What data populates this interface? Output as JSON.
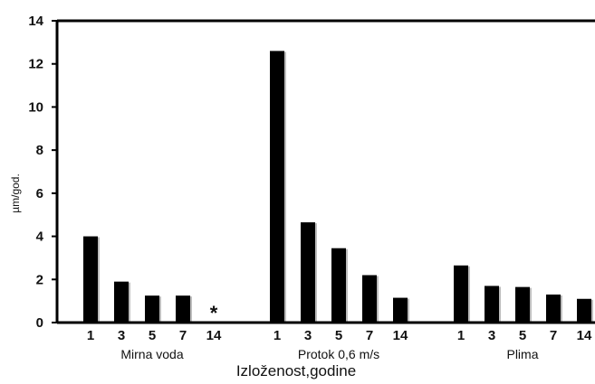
{
  "chart_data": {
    "type": "bar",
    "title": "",
    "xlabel": "Izloženost,godine",
    "ylabel": "µm/god.",
    "ylim": [
      0,
      14
    ],
    "yticks": [
      0,
      2,
      4,
      6,
      8,
      10,
      12,
      14
    ],
    "ytick_labels": [
      "0",
      "2",
      "4",
      "6",
      "8",
      "10",
      "12",
      "14"
    ],
    "grid": false,
    "legend": "none",
    "bar_color": "#000000",
    "bar_shadow_color": "#bdbdbd",
    "groups": [
      {
        "name": "Mirna voda",
        "categories": [
          "1",
          "3",
          "5",
          "7",
          "14"
        ],
        "values": [
          4.0,
          1.9,
          1.25,
          1.25,
          null
        ],
        "annotations": [
          {
            "category": "14",
            "text": "*"
          }
        ]
      },
      {
        "name": "Protok 0,6 m/s",
        "categories": [
          "1",
          "3",
          "5",
          "7",
          "14"
        ],
        "values": [
          12.6,
          4.65,
          3.45,
          2.2,
          1.15
        ],
        "annotations": []
      },
      {
        "name": "Plima",
        "categories": [
          "1",
          "3",
          "5",
          "7",
          "14"
        ],
        "values": [
          2.65,
          1.7,
          1.65,
          1.3,
          1.1
        ],
        "annotations": []
      }
    ]
  }
}
